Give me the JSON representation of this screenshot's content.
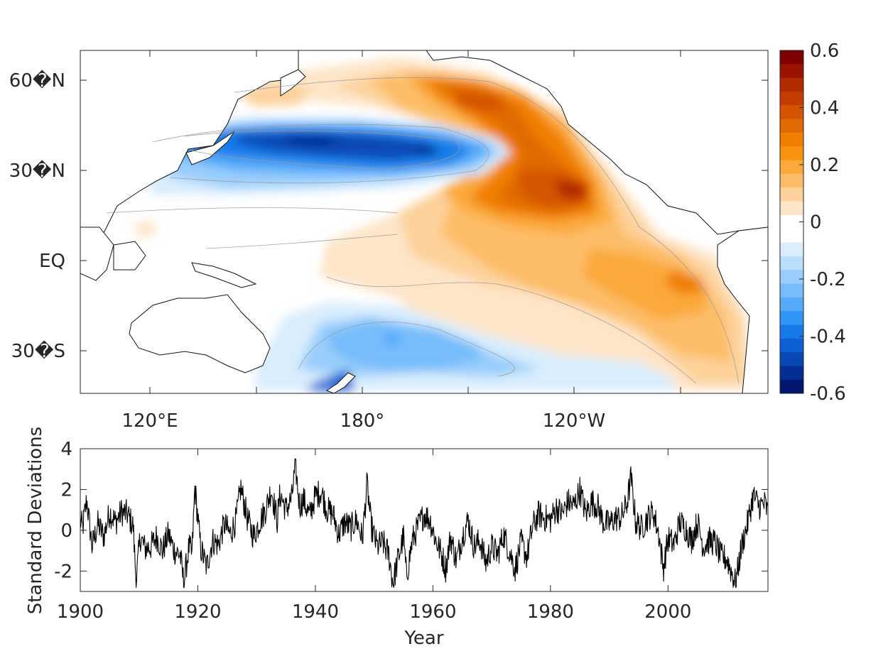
{
  "chart_data": [
    {
      "type": "heatmap",
      "title": "",
      "lat_tick_labels": [
        "60�N",
        "30�N",
        "EQ",
        "30�S"
      ],
      "lon_tick_labels": [
        "120°E",
        "180°",
        "120°W"
      ],
      "colorbar": {
        "ticks": [
          0.6,
          0.4,
          0.2,
          0,
          -0.2,
          -0.4,
          -0.6
        ],
        "tick_labels": [
          "0.6",
          "0.4",
          "0.2",
          "0",
          "-0.2",
          "-0.4",
          "-0.6"
        ],
        "range": [
          -0.6,
          0.6
        ],
        "level_step": 0.05,
        "colors_high_to_low": [
          "#7f0000",
          "#9a1300",
          "#b22a00",
          "#c43d00",
          "#d55400",
          "#e06a00",
          "#f07f00",
          "#f7930f",
          "#fba93b",
          "#fdbd68",
          "#fdd19a",
          "#fee5c8",
          "#ffffff",
          "#ffffff",
          "#d9edfd",
          "#bbdefd",
          "#99cefc",
          "#78bdfb",
          "#55aafa",
          "#2f94f5",
          "#157be9",
          "#0c62d4",
          "#0748b5",
          "#042e94",
          "#001671"
        ]
      },
      "features": {
        "north_pacific_negative_min": -0.5,
        "northeast_pacific_positive_max": 0.5,
        "south_pacific_negative_min": -0.3,
        "eastern_tropical_positive_max": 0.3
      }
    },
    {
      "type": "line",
      "xlabel": "Year",
      "ylabel": "Standard Deviations",
      "xlim": [
        1900,
        2017
      ],
      "ylim": [
        -3,
        4
      ],
      "xticks": [
        1900,
        1920,
        1940,
        1960,
        1980,
        2000
      ],
      "yticks": [
        -2,
        0,
        2,
        4
      ],
      "anchors_year_value": [
        [
          1900,
          0.5
        ],
        [
          1900.4,
          0.1
        ],
        [
          1901.1,
          1.5
        ],
        [
          1902,
          -0.8
        ],
        [
          1903,
          0.3
        ],
        [
          1904,
          -0.3
        ],
        [
          1905,
          0.9
        ],
        [
          1906,
          0.4
        ],
        [
          1907,
          0.9
        ],
        [
          1908,
          0.8
        ],
        [
          1909,
          0.2
        ],
        [
          1909.5,
          -2.5
        ],
        [
          1910.2,
          -0.3
        ],
        [
          1911,
          -0.9
        ],
        [
          1912,
          -0.8
        ],
        [
          1913,
          -0.3
        ],
        [
          1914,
          -1.0
        ],
        [
          1915,
          -0.2
        ],
        [
          1916,
          -1.0
        ],
        [
          1917,
          -1.2
        ],
        [
          1917.6,
          -2.6
        ],
        [
          1918.5,
          -0.8
        ],
        [
          1919,
          -1.2
        ],
        [
          1919.5,
          2.1
        ],
        [
          1920.5,
          -0.9
        ],
        [
          1921.5,
          -1.8
        ],
        [
          1922.5,
          -0.5
        ],
        [
          1923.5,
          -0.7
        ],
        [
          1924.5,
          0.3
        ],
        [
          1925.5,
          -0.2
        ],
        [
          1926.5,
          0.5
        ],
        [
          1927.3,
          2.1
        ],
        [
          1928.5,
          0.5
        ],
        [
          1929.5,
          -0.3
        ],
        [
          1930.5,
          0.4
        ],
        [
          1931.5,
          1.0
        ],
        [
          1932.5,
          2.0
        ],
        [
          1933.5,
          0.5
        ],
        [
          1934,
          1.8
        ],
        [
          1935,
          1.0
        ],
        [
          1936,
          1.6
        ],
        [
          1936.6,
          3.2
        ],
        [
          1937.3,
          1.2
        ],
        [
          1938,
          1.5
        ],
        [
          1939,
          0.7
        ],
        [
          1940,
          1.7
        ],
        [
          1941,
          1.9
        ],
        [
          1942,
          1.0
        ],
        [
          1943,
          0.8
        ],
        [
          1944,
          -0.2
        ],
        [
          1945,
          0.4
        ],
        [
          1946,
          0.1
        ],
        [
          1947,
          0.5
        ],
        [
          1948,
          -0.4
        ],
        [
          1948.8,
          2.3
        ],
        [
          1949.5,
          0.2
        ],
        [
          1950.5,
          -0.8
        ],
        [
          1951.5,
          -0.6
        ],
        [
          1952.5,
          -1.2
        ],
        [
          1953.2,
          -2.6
        ],
        [
          1954,
          -1.5
        ],
        [
          1955,
          -0.3
        ],
        [
          1955.5,
          -2.3
        ],
        [
          1956.5,
          -0.5
        ],
        [
          1957.5,
          0.2
        ],
        [
          1958.5,
          0.8
        ],
        [
          1959.5,
          0.5
        ],
        [
          1960.5,
          -0.5
        ],
        [
          1961.5,
          -1.2
        ],
        [
          1962.2,
          -1.9
        ],
        [
          1963,
          -0.3
        ],
        [
          1964,
          -1.5
        ],
        [
          1965,
          -0.3
        ],
        [
          1966,
          0.5
        ],
        [
          1967,
          -0.8
        ],
        [
          1968,
          -0.5
        ],
        [
          1969,
          -1.6
        ],
        [
          1970,
          -0.8
        ],
        [
          1971,
          -1.2
        ],
        [
          1972,
          -0.2
        ],
        [
          1973,
          -1.0
        ],
        [
          1974,
          -1.9
        ],
        [
          1975,
          -0.6
        ],
        [
          1976,
          -1.3
        ],
        [
          1977,
          0.2
        ],
        [
          1978,
          0.8
        ],
        [
          1979,
          0.6
        ],
        [
          1980,
          0.5
        ],
        [
          1981,
          1.1
        ],
        [
          1982,
          0.8
        ],
        [
          1983,
          1.4
        ],
        [
          1984,
          1.2
        ],
        [
          1985,
          2.0
        ],
        [
          1986,
          0.8
        ],
        [
          1987,
          1.4
        ],
        [
          1988,
          1.2
        ],
        [
          1989,
          0.4
        ],
        [
          1990,
          0.3
        ],
        [
          1991,
          0.6
        ],
        [
          1992,
          0.6
        ],
        [
          1993,
          1.3
        ],
        [
          1993.7,
          2.6
        ],
        [
          1994.5,
          0.4
        ],
        [
          1995.5,
          0.1
        ],
        [
          1996.5,
          0.6
        ],
        [
          1997.5,
          0.9
        ],
        [
          1998.5,
          -0.3
        ],
        [
          1999.2,
          -1.9
        ],
        [
          2000,
          -0.4
        ],
        [
          2001,
          -0.7
        ],
        [
          2002,
          0.4
        ],
        [
          2003,
          0.1
        ],
        [
          2004,
          -0.5
        ],
        [
          2005,
          0.4
        ],
        [
          2006,
          -0.8
        ],
        [
          2007,
          -0.5
        ],
        [
          2008,
          -0.6
        ],
        [
          2009,
          -1.3
        ],
        [
          2010,
          -1.4
        ],
        [
          2011.5,
          -2.6
        ],
        [
          2012.5,
          -0.8
        ],
        [
          2013.5,
          0.3
        ],
        [
          2014.5,
          1.7
        ],
        [
          2015.5,
          1.2
        ],
        [
          2016.5,
          1.3
        ],
        [
          2017,
          0.8
        ]
      ]
    }
  ]
}
